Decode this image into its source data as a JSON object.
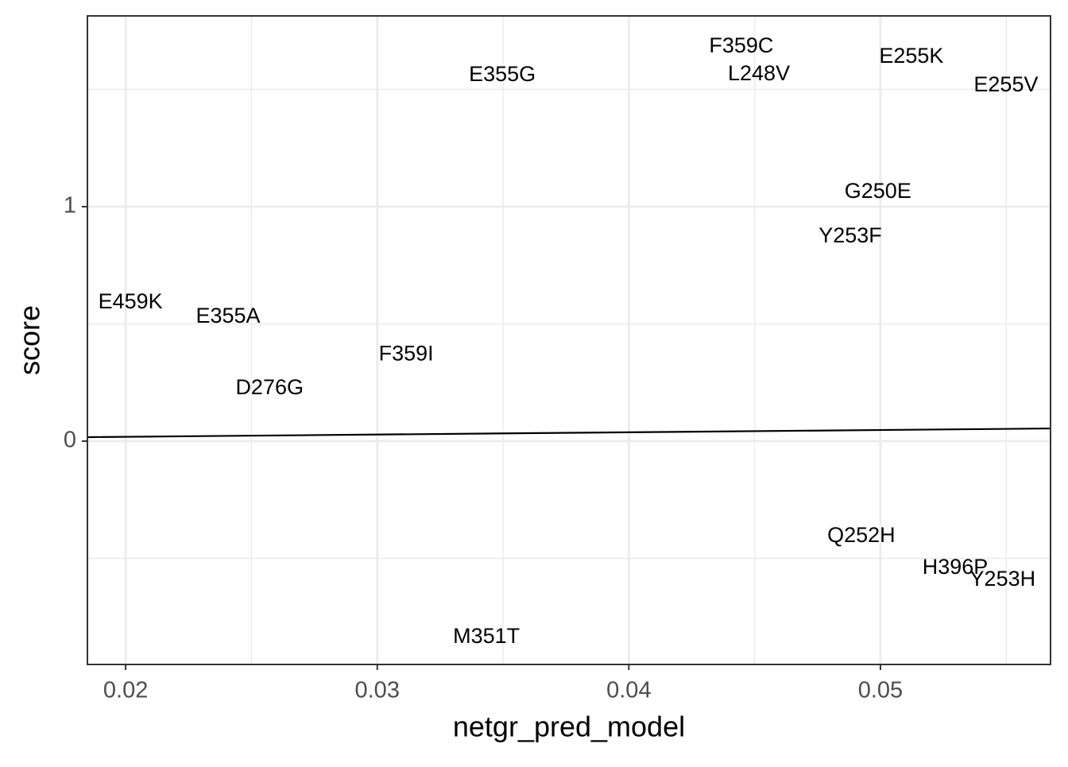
{
  "chart_data": {
    "type": "scatter",
    "x_label": "netgr_pred_model",
    "y_label": "score",
    "labels": [
      "F359C",
      "L248V",
      "E255K",
      "E255V",
      "E355G",
      "G250E",
      "Y253F",
      "E459K",
      "E355A",
      "F359I",
      "D276G",
      "Q252H",
      "H396P",
      "Y253H",
      "M351T"
    ],
    "x": [
      0.04447,
      0.04517,
      0.05123,
      0.05499,
      0.03497,
      0.0499,
      0.0488,
      0.02019,
      0.02407,
      0.03115,
      0.02572,
      0.04924,
      0.05297,
      0.05486,
      0.03434
    ],
    "values": [
      1.681,
      1.563,
      1.637,
      1.515,
      1.559,
      1.061,
      0.871,
      0.59,
      0.529,
      0.369,
      0.224,
      -0.407,
      -0.542,
      -0.593,
      -0.837
    ],
    "trend_line": {
      "x": [
        0.01848,
        0.05676
      ],
      "values": [
        0.017,
        0.054
      ],
      "color": "#000000"
    },
    "xlim": [
      0.01848,
      0.05676
    ],
    "ylim": [
      -0.9525,
      1.8136
    ],
    "xticks": [
      {
        "value": 0.02,
        "label": "0.02"
      },
      {
        "value": 0.03,
        "label": "0.03"
      },
      {
        "value": 0.04,
        "label": "0.04"
      },
      {
        "value": 0.05,
        "label": "0.05"
      }
    ],
    "yticks": [
      0,
      1
    ],
    "xminor": [
      0.025,
      0.035,
      0.045,
      0.055
    ],
    "yminor": [
      -0.5,
      0.5,
      1.5
    ],
    "grid": true
  }
}
